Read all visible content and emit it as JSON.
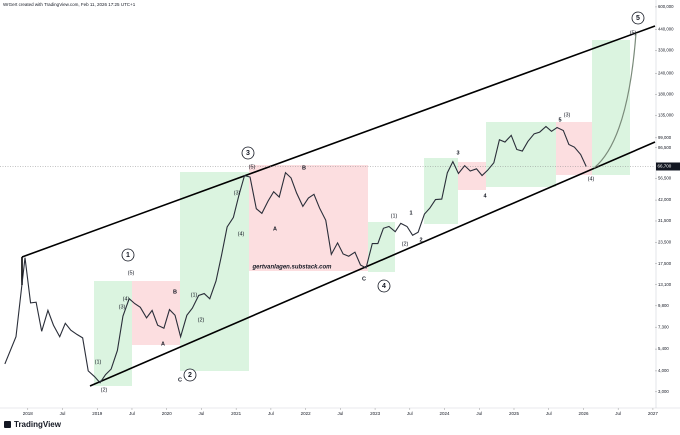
{
  "chart_data": {
    "type": "line",
    "header": "WrGert created with TradingView.com, Feb 11, 2026 17:25 UTC+1",
    "brand": "TradingView",
    "log_scale": true,
    "color": "#2a2e39",
    "x": [
      2017.67,
      2017.83,
      2017.96,
      2018.04,
      2018.12,
      2018.2,
      2018.29,
      2018.37,
      2018.46,
      2018.54,
      2018.62,
      2018.71,
      2018.79,
      2018.87,
      2018.96,
      2019.04,
      2019.12,
      2019.2,
      2019.29,
      2019.37,
      2019.46,
      2019.54,
      2019.62,
      2019.71,
      2019.79,
      2019.87,
      2019.96,
      2020.04,
      2020.12,
      2020.2,
      2020.29,
      2020.37,
      2020.46,
      2020.54,
      2020.62,
      2020.71,
      2020.79,
      2020.87,
      2020.96,
      2021.04,
      2021.12,
      2021.2,
      2021.29,
      2021.37,
      2021.46,
      2021.54,
      2021.62,
      2021.71,
      2021.79,
      2021.87,
      2021.96,
      2022.04,
      2022.12,
      2022.2,
      2022.29,
      2022.37,
      2022.46,
      2022.54,
      2022.62,
      2022.71,
      2022.79,
      2022.87,
      2022.96,
      2023.04,
      2023.12,
      2023.2,
      2023.29,
      2023.37,
      2023.46,
      2023.54,
      2023.62,
      2023.71,
      2023.79,
      2023.87,
      2023.96,
      2024.04,
      2024.12,
      2024.2,
      2024.29,
      2024.37,
      2024.46,
      2024.54,
      2024.62,
      2024.71,
      2024.79,
      2024.87,
      2024.96,
      2025.04,
      2025.12,
      2025.2,
      2025.29,
      2025.37,
      2025.46,
      2025.54,
      2025.62,
      2025.71,
      2025.79,
      2025.87,
      2025.96,
      2026.04
    ],
    "values": [
      4400,
      6400,
      19000,
      10200,
      10300,
      6900,
      9200,
      7500,
      6400,
      7700,
      7000,
      6600,
      6300,
      4000,
      3700,
      3400,
      3800,
      4100,
      5300,
      8500,
      10800,
      10100,
      9600,
      8300,
      9200,
      7500,
      7200,
      9300,
      8600,
      6400,
      8600,
      9500,
      11300,
      11600,
      10800,
      13800,
      19700,
      29000,
      33100,
      45000,
      58800,
      57700,
      37300,
      35000,
      41500,
      47100,
      43800,
      61300,
      57000,
      46300,
      38500,
      43200,
      45500,
      37700,
      31800,
      19900,
      23300,
      20000,
      19400,
      20500,
      17200,
      16500,
      23100,
      23100,
      28500,
      29200,
      27200,
      30500,
      29200,
      25900,
      27000,
      34600,
      37700,
      42300,
      42600,
      61100,
      71300,
      60600,
      67500,
      62700,
      64600,
      58900,
      63300,
      70200,
      96400,
      93400,
      102400,
      84300,
      82500,
      94200,
      104600,
      107100,
      115700,
      108200,
      114000,
      109500,
      90300,
      87000,
      78600,
      66700
    ],
    "xlim": [
      2017.6,
      2027.03
    ],
    "xticks": [
      2018,
      {
        "value": 2018.5,
        "label": "Jul"
      },
      2019,
      {
        "value": 2019.5,
        "label": "Jul"
      },
      2020,
      {
        "value": 2020.5,
        "label": "Jul"
      },
      2021,
      {
        "value": 2021.5,
        "label": "Jul"
      },
      2022,
      {
        "value": 2022.5,
        "label": "Jul"
      },
      2023,
      {
        "value": 2023.5,
        "label": "Jul"
      },
      2024,
      {
        "value": 2024.5,
        "label": "Jul"
      },
      2025,
      {
        "value": 2025.5,
        "label": "Jul"
      },
      2026,
      {
        "value": 2026.5,
        "label": "Jul"
      },
      2027
    ],
    "ylim": [
      2400,
      660000
    ],
    "yticks": [
      {
        "value": 600000,
        "label": "600,000"
      },
      {
        "value": 440000,
        "label": "440,000"
      },
      {
        "value": 330000,
        "label": "330,000"
      },
      {
        "value": 240000,
        "label": "240,000"
      },
      {
        "value": 180000,
        "label": "180,000"
      },
      {
        "value": 135000,
        "label": "135,000"
      },
      {
        "value": 99000,
        "label": "99,000"
      },
      {
        "value": 86500,
        "label": "86,500"
      },
      {
        "value": 56500,
        "label": "56,500"
      },
      {
        "value": 42000,
        "label": "42,000"
      },
      {
        "value": 31500,
        "label": "31,500"
      },
      {
        "value": 23500,
        "label": "23,500"
      },
      {
        "value": 17500,
        "label": "17,500"
      },
      {
        "value": 13100,
        "label": "13,100"
      },
      {
        "value": 9800,
        "label": "9,800"
      },
      {
        "value": 7300,
        "label": "7,300"
      },
      {
        "value": 5400,
        "label": "5,400"
      },
      {
        "value": 4000,
        "label": "4,000"
      },
      {
        "value": 3000,
        "label": "3,000"
      }
    ],
    "last_price": {
      "value": 66700,
      "label": "66,700"
    },
    "annotations": [
      "1",
      "(5)",
      "(4)",
      "(3)",
      "(1)",
      "(2)",
      "A",
      "B",
      "C",
      "2",
      "(1)",
      "(2)",
      "(4)",
      "(3)",
      "3",
      "(5)",
      "A",
      "B",
      "gertvanlagen.substack.com",
      "C",
      "4",
      "(1)",
      "(2)",
      "1",
      "2",
      "3",
      "4",
      "5",
      "(3)",
      "(4)",
      "5",
      "(5)"
    ]
  }
}
